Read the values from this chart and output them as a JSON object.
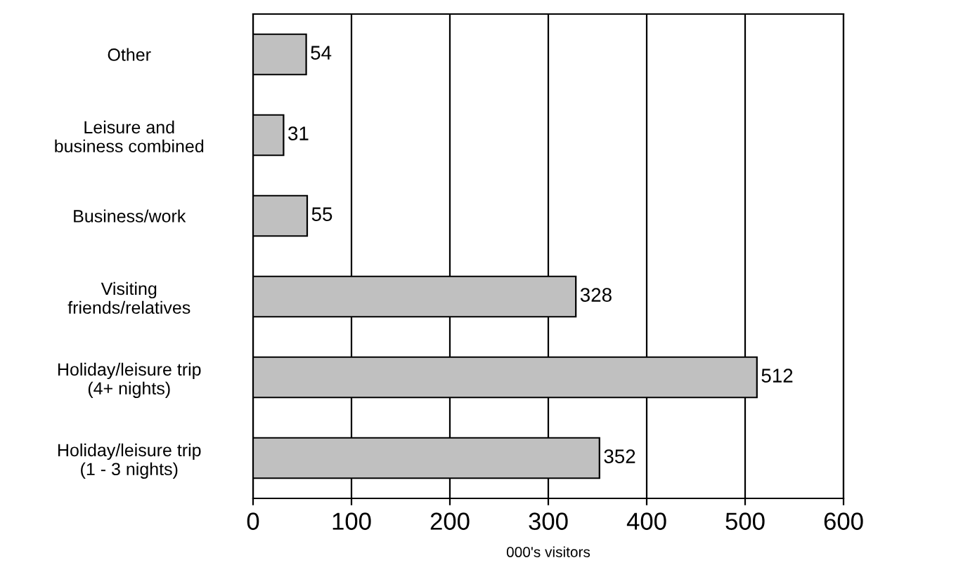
{
  "chart_data": {
    "type": "bar",
    "orientation": "horizontal",
    "xlabel": "000's visitors",
    "categories": [
      "Other",
      "Leisure and\nbusiness combined",
      "Business/work",
      "Visiting\nfriends/relatives",
      "Holiday/leisure trip\n(4+ nights)",
      "Holiday/leisure trip\n(1 - 3 nights)"
    ],
    "values": [
      54,
      31,
      55,
      328,
      512,
      352
    ],
    "color": "#c0c0c0",
    "xlim": [
      0,
      600
    ],
    "xticks": [
      0,
      100,
      200,
      300,
      400,
      500,
      600
    ],
    "grid": "x",
    "data_labels": true
  }
}
